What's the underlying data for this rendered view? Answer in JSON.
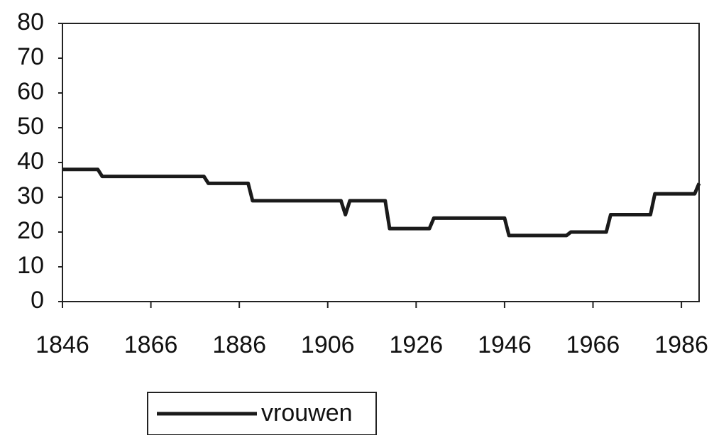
{
  "chart_data": {
    "type": "line",
    "x": [
      1846,
      1854,
      1855,
      1878,
      1879,
      1888,
      1889,
      1909,
      1910,
      1911,
      1919,
      1920,
      1929,
      1930,
      1946,
      1947,
      1960,
      1961,
      1969,
      1970,
      1979,
      1980,
      1989,
      1990
    ],
    "series": [
      {
        "name": "vrouwen",
        "color": "#1a1a1a",
        "values": [
          38,
          38,
          36,
          36,
          34,
          34,
          29,
          29,
          25,
          29,
          29,
          21,
          21,
          24,
          24,
          19,
          19,
          20,
          20,
          25,
          25,
          31,
          31,
          34
        ]
      }
    ],
    "xlim": [
      1846,
      1990
    ],
    "xticks": [
      1846,
      1866,
      1886,
      1906,
      1926,
      1946,
      1966,
      1986
    ],
    "ylim": [
      0,
      80
    ],
    "yticks": [
      0,
      10,
      20,
      30,
      40,
      50,
      60,
      70,
      80
    ],
    "grid": false,
    "legend": "bottom"
  }
}
